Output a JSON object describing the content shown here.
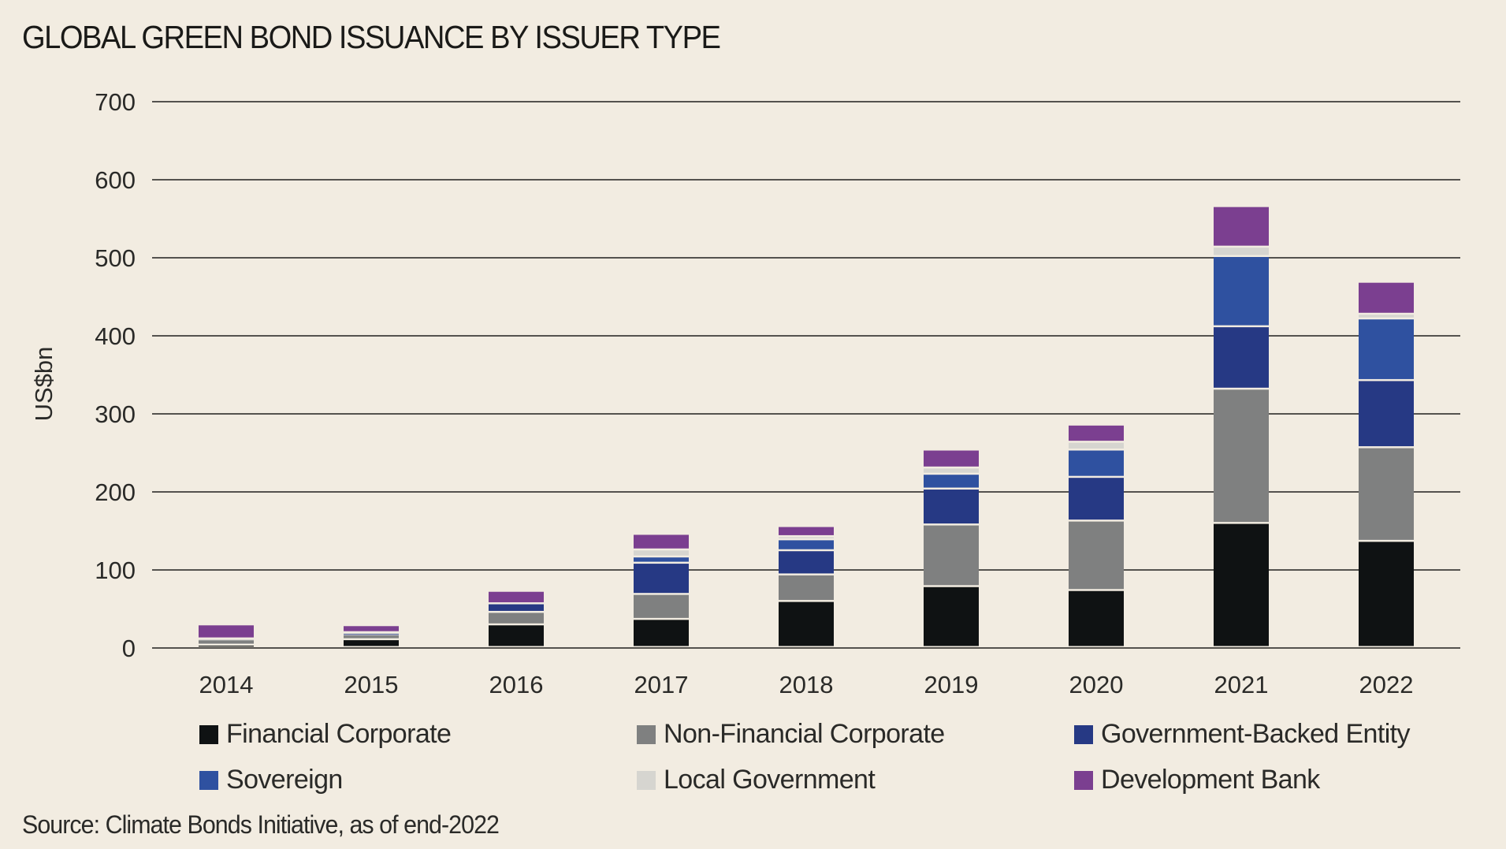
{
  "chart_data": {
    "type": "bar",
    "stacked": true,
    "title": "GLOBAL GREEN BOND ISSUANCE BY ISSUER TYPE",
    "xlabel": "",
    "ylabel": "US$bn",
    "ylim": [
      0,
      700
    ],
    "yticks": [
      0,
      100,
      200,
      300,
      400,
      500,
      600,
      700
    ],
    "grid": true,
    "legend_position": "bottom",
    "categories": [
      "2014",
      "2015",
      "2016",
      "2017",
      "2018",
      "2019",
      "2020",
      "2021",
      "2022"
    ],
    "series": [
      {
        "name": "Financial Corporate",
        "color": "#0f1213",
        "values": [
          3,
          10,
          29,
          36,
          59,
          78,
          73,
          159,
          136
        ]
      },
      {
        "name": "Non-Financial Corporate",
        "color": "#7f8080",
        "values": [
          7,
          6,
          16,
          32,
          34,
          79,
          89,
          172,
          120
        ]
      },
      {
        "name": "Government-Backed Entity",
        "color": "#263984",
        "values": [
          0,
          2,
          11,
          40,
          31,
          46,
          56,
          80,
          86
        ]
      },
      {
        "name": "Sovereign",
        "color": "#2f51a0",
        "values": [
          0,
          0,
          0,
          8,
          14,
          19,
          35,
          90,
          79
        ]
      },
      {
        "name": "Local Government",
        "color": "#d6d5d0",
        "values": [
          1,
          1,
          0,
          9,
          4,
          8,
          10,
          12,
          6
        ]
      },
      {
        "name": "Development Bank",
        "color": "#7b3f90",
        "values": [
          18,
          9,
          16,
          20,
          13,
          23,
          22,
          52,
          41
        ]
      }
    ]
  },
  "source": "Source: Climate Bonds Initiative, as of end-2022"
}
